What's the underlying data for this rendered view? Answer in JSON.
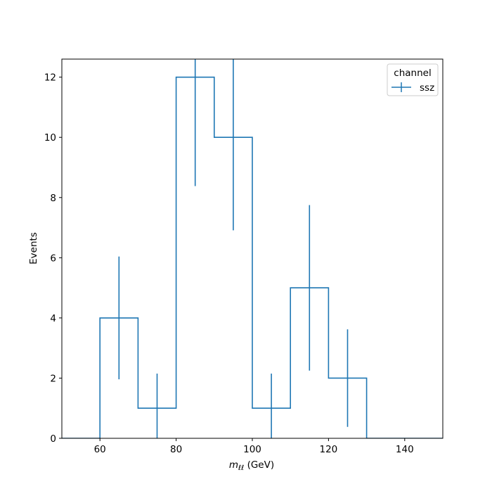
{
  "chart_data": {
    "type": "line",
    "style": "step histogram with error bars",
    "xlabel": "GeV",
    "xlabel_var": "m",
    "xlabel_sub": "ℓℓ",
    "ylabel": "Events",
    "xlim": [
      50,
      150
    ],
    "ylim": [
      0,
      12.6
    ],
    "x_ticks": [
      60,
      80,
      100,
      120,
      140
    ],
    "y_ticks": [
      0,
      2,
      4,
      6,
      8,
      10,
      12
    ],
    "grid": false,
    "legend": {
      "title": "channel",
      "placement": "top-right"
    },
    "series": [
      {
        "name": "ssz",
        "color": "#1f77b4",
        "bin_edges": [
          50,
          60,
          70,
          80,
          90,
          100,
          110,
          120,
          130,
          140,
          150
        ],
        "values": [
          0,
          4,
          1,
          12,
          10,
          1,
          5,
          2,
          0,
          0
        ],
        "errors": [
          0,
          2.04,
          1.15,
          3.62,
          3.09,
          1.15,
          2.75,
          1.62,
          0,
          0
        ]
      }
    ]
  }
}
